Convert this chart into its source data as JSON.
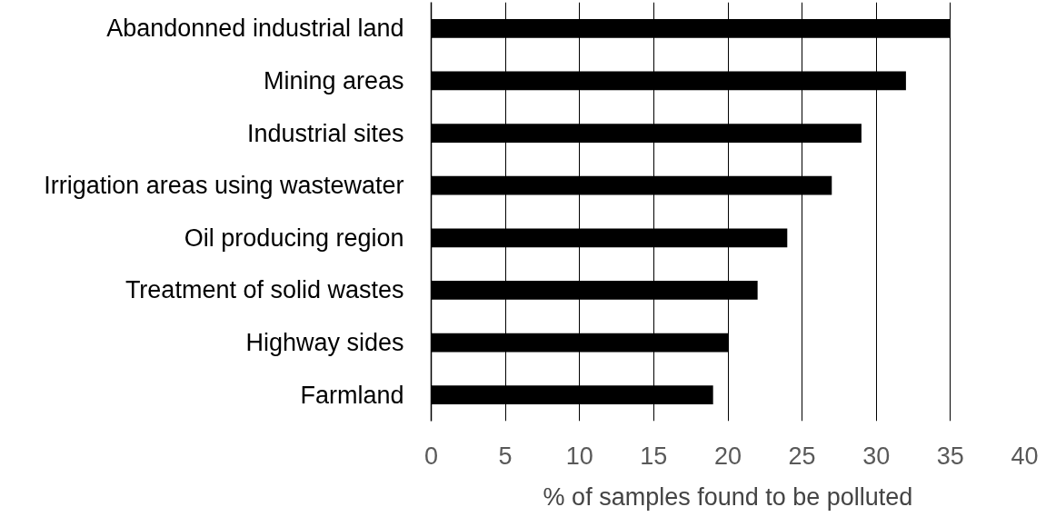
{
  "chart_data": {
    "type": "bar",
    "orientation": "horizontal",
    "xlabel": "% of samples found to be polluted",
    "categories": [
      "Abandonned industrial land",
      "Mining areas",
      "Industrial sites",
      "Irrigation areas using wastewater",
      "Oil producing region",
      "Treatment of solid wastes",
      "Highway sides",
      "Farmland"
    ],
    "values": [
      35,
      32,
      29,
      27,
      24,
      22,
      20,
      19
    ],
    "color": "#000000",
    "xlim": [
      0,
      40
    ],
    "xticks": [
      0,
      5,
      10,
      15,
      20,
      25,
      30,
      35,
      40
    ],
    "grid": "x"
  }
}
